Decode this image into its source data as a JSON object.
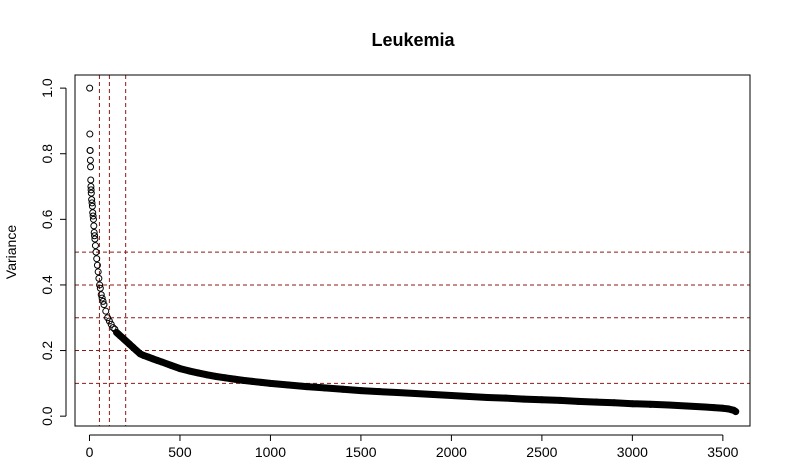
{
  "chart_data": {
    "type": "scatter",
    "title": "Leukemia",
    "xlabel": "",
    "ylabel": "Variance",
    "xlim": [
      -80,
      3650
    ],
    "ylim": [
      -0.03,
      1.04
    ],
    "x_ticks": [
      0,
      500,
      1000,
      1500,
      2000,
      2500,
      3000,
      3500
    ],
    "x_tick_labels": [
      "0",
      "500",
      "1000",
      "1500",
      "2000",
      "2500",
      "3000",
      "3500"
    ],
    "y_ticks": [
      0.0,
      0.2,
      0.4,
      0.6,
      0.8,
      1.0
    ],
    "y_tick_labels": [
      "0.0",
      "0.2",
      "0.4",
      "0.6",
      "0.8",
      "1.0"
    ],
    "grid": false,
    "reference_lines": {
      "color": "#8b1a1a",
      "style": "dashed",
      "horizontal_y": [
        0.1,
        0.2,
        0.3,
        0.4,
        0.5
      ],
      "vertical_x": [
        55,
        110,
        200
      ]
    },
    "series": [
      {
        "marker": "open-circle",
        "color": "#000000",
        "points_x": [
          1,
          2,
          3,
          4,
          5,
          6,
          7,
          8,
          9,
          10,
          12,
          14,
          16,
          18,
          20,
          22,
          24,
          26,
          28,
          30,
          33,
          36,
          40,
          44,
          48,
          52,
          56,
          60,
          65,
          70,
          75,
          80,
          90,
          100,
          110,
          120,
          130,
          140,
          150,
          160,
          170,
          180,
          190,
          200,
          220,
          240,
          260,
          280,
          300,
          325,
          350,
          375,
          400,
          450,
          500,
          550,
          600,
          650,
          700,
          750,
          800,
          850,
          900,
          950,
          1000,
          1100,
          1200,
          1300,
          1400,
          1500,
          1600,
          1700,
          1800,
          1900,
          2000,
          2100,
          2200,
          2300,
          2400,
          2500,
          2600,
          2700,
          2800,
          2900,
          3000,
          3100,
          3200,
          3300,
          3400,
          3450,
          3500,
          3530,
          3560,
          3571
        ],
        "points_y": [
          1.0,
          0.86,
          0.81,
          0.81,
          0.78,
          0.76,
          0.72,
          0.7,
          0.69,
          0.68,
          0.66,
          0.65,
          0.64,
          0.62,
          0.61,
          0.6,
          0.58,
          0.56,
          0.55,
          0.54,
          0.52,
          0.5,
          0.48,
          0.46,
          0.44,
          0.42,
          0.4,
          0.39,
          0.37,
          0.36,
          0.35,
          0.34,
          0.32,
          0.3,
          0.29,
          0.28,
          0.27,
          0.265,
          0.255,
          0.25,
          0.245,
          0.24,
          0.235,
          0.23,
          0.22,
          0.21,
          0.2,
          0.19,
          0.185,
          0.18,
          0.175,
          0.17,
          0.165,
          0.155,
          0.145,
          0.138,
          0.132,
          0.126,
          0.121,
          0.117,
          0.113,
          0.109,
          0.106,
          0.103,
          0.1,
          0.095,
          0.09,
          0.086,
          0.082,
          0.078,
          0.075,
          0.072,
          0.069,
          0.066,
          0.063,
          0.06,
          0.057,
          0.055,
          0.052,
          0.05,
          0.048,
          0.045,
          0.043,
          0.041,
          0.038,
          0.036,
          0.034,
          0.031,
          0.028,
          0.026,
          0.024,
          0.022,
          0.018,
          0.014
        ]
      }
    ]
  }
}
